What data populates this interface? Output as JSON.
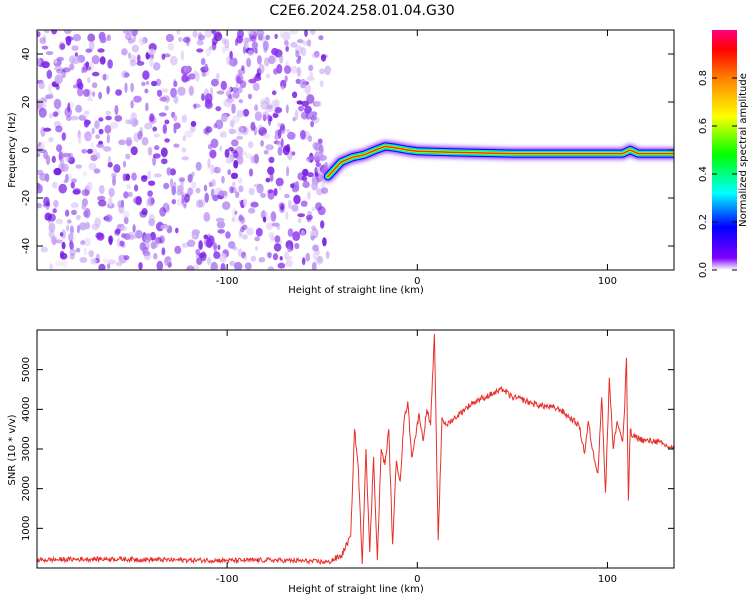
{
  "title": "C2E6.2024.258.01.04.G30",
  "chart_data": [
    {
      "type": "heatmap",
      "xlabel": "Height of straight line (km)",
      "ylabel": "Frequency (Hz)",
      "xlim": [
        -200,
        135
      ],
      "ylim": [
        -50,
        50
      ],
      "x_ticks": [
        -100,
        0,
        100
      ],
      "x_tick_labels": [
        "-100",
        "0",
        "100"
      ],
      "y_ticks": [
        -40,
        -20,
        0,
        20,
        40
      ],
      "y_tick_labels": [
        "-40",
        "-20",
        "0",
        "20",
        "40"
      ],
      "noise_region_x": [
        -200,
        -47
      ],
      "ridge": [
        {
          "x": -47,
          "y": -11
        },
        {
          "x": -40,
          "y": -5
        },
        {
          "x": -34,
          "y": -3
        },
        {
          "x": -28,
          "y": -2
        },
        {
          "x": -22,
          "y": 0
        },
        {
          "x": -17,
          "y": 1.5
        },
        {
          "x": -12,
          "y": 1
        },
        {
          "x": -5,
          "y": 0
        },
        {
          "x": 0,
          "y": -0.5
        },
        {
          "x": 20,
          "y": -1
        },
        {
          "x": 50,
          "y": -1.5
        },
        {
          "x": 90,
          "y": -1.5
        },
        {
          "x": 108,
          "y": -1.5
        },
        {
          "x": 112,
          "y": 0
        },
        {
          "x": 116,
          "y": -1.5
        },
        {
          "x": 135,
          "y": -1.5
        }
      ],
      "colorbar": {
        "label": "Normalized spectral amplitude",
        "range": [
          0,
          1
        ],
        "ticks": [
          0.0,
          0.2,
          0.4,
          0.6,
          0.8
        ],
        "tick_labels": [
          "0.0",
          "0.2",
          "0.4",
          "0.6",
          "0.8"
        ],
        "colors": [
          "#ffffff",
          "#7f00ff",
          "#0000ff",
          "#00ffff",
          "#00ff00",
          "#ffff00",
          "#ff7f00",
          "#ff0000",
          "#ff0080"
        ]
      },
      "grid": false,
      "legend": "none"
    },
    {
      "type": "line",
      "xlabel": "Height of straight line (km)",
      "ylabel": "SNR (10 * v/v)",
      "xlim": [
        -200,
        135
      ],
      "ylim": [
        0,
        6000
      ],
      "x_ticks": [
        -100,
        0,
        100
      ],
      "x_tick_labels": [
        "-100",
        "0",
        "100"
      ],
      "y_ticks": [
        1000,
        2000,
        3000,
        4000,
        5000
      ],
      "y_tick_labels": [
        "1000",
        "2000",
        "3000",
        "4000",
        "5000"
      ],
      "line_color": "#e8302a",
      "series": [
        {
          "x": [
            -200,
            -180,
            -160,
            -140,
            -120,
            -100,
            -80,
            -60,
            -47,
            -40,
            -35,
            -33,
            -31,
            -29,
            -27,
            -25,
            -23,
            -21,
            -19,
            -17,
            -15,
            -13,
            -11,
            -9,
            -7,
            -5,
            -3,
            -1,
            1,
            3,
            5,
            7,
            9,
            11,
            13,
            15,
            20,
            25,
            30,
            35,
            40,
            45,
            50,
            55,
            60,
            65,
            70,
            75,
            80,
            85,
            88,
            90,
            92,
            95,
            97,
            99,
            101,
            103,
            105,
            108,
            109,
            110,
            111,
            112,
            113,
            115,
            120,
            125,
            130,
            135
          ],
          "y": [
            200,
            220,
            230,
            210,
            200,
            190,
            200,
            180,
            150,
            300,
            800,
            3500,
            2500,
            100,
            3000,
            400,
            2800,
            200,
            3000,
            2600,
            3500,
            600,
            2700,
            2200,
            3700,
            4200,
            2800,
            3300,
            3900,
            3200,
            4000,
            3600,
            5900,
            700,
            3800,
            3600,
            3800,
            4000,
            4200,
            4300,
            4400,
            4500,
            4300,
            4250,
            4150,
            4100,
            4050,
            4000,
            3800,
            3600,
            2900,
            3700,
            3000,
            2400,
            4300,
            1900,
            4800,
            3000,
            3700,
            3200,
            4000,
            5300,
            1700,
            3500,
            3300,
            3300,
            3200,
            3200,
            3100,
            3000
          ]
        }
      ],
      "grid": false,
      "legend": "none"
    }
  ]
}
